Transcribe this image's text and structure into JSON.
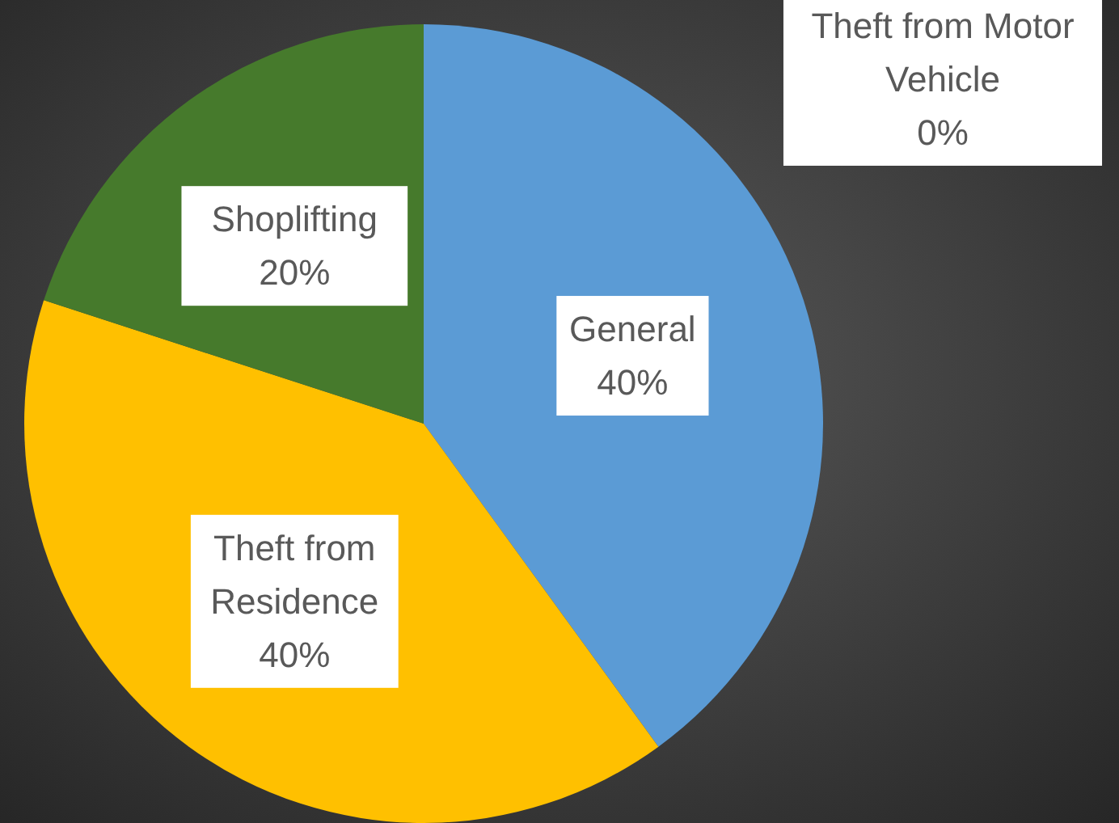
{
  "chart_data": {
    "type": "pie",
    "categories": [
      "General",
      "Theft from Residence",
      "Shoplifting",
      "Theft from Motor Vehicle"
    ],
    "values": [
      40,
      40,
      20,
      0
    ],
    "colors": [
      "#5b9bd5",
      "#ffc000",
      "#467a2c",
      "#a5a5a5"
    ],
    "value_labels": [
      "40%",
      "40%",
      "20%",
      "0%"
    ]
  }
}
